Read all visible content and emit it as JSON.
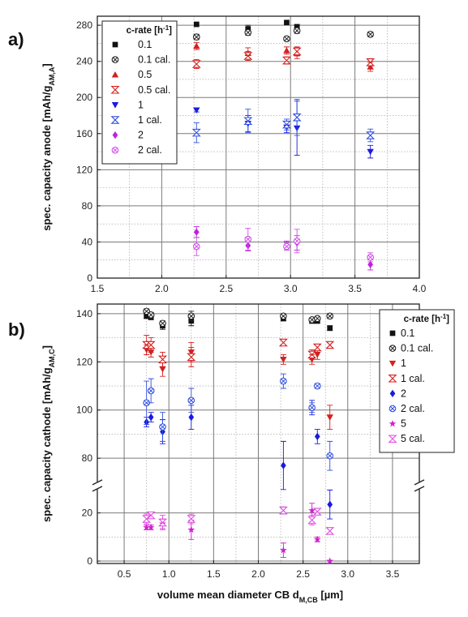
{
  "chart_data": [
    {
      "panel": "a)",
      "type": "scatter",
      "ylabel": "spec. capacity anode [mAh/g",
      "ylabel_sub": "AM,A",
      "ylabel_end": "]",
      "xlim": [
        1.5,
        4.0
      ],
      "ylim": [
        0,
        290
      ],
      "xticks": [
        "1.5",
        "2.0",
        "2.5",
        "3.0",
        "3.5",
        "4.0"
      ],
      "yticks": [
        "0",
        "40",
        "80",
        "120",
        "160",
        "200",
        "240",
        "280"
      ],
      "grid": true,
      "legend": {
        "title": "c-rate [h",
        "title_sup": "-1",
        "title_end": "]",
        "placement": "top-left"
      },
      "series": [
        {
          "name": "0.1",
          "marker": "square",
          "color": "#111111",
          "filled": true,
          "points": [
            [
              2.27,
              281,
              0
            ],
            [
              2.67,
              276,
              4
            ],
            [
              2.97,
              283,
              0
            ],
            [
              3.05,
              278,
              3
            ],
            [
              3.62,
              270,
              2
            ]
          ]
        },
        {
          "name": "0.1 cal.",
          "marker": "circle-x",
          "color": "#222222",
          "filled": false,
          "points": [
            [
              2.27,
              267,
              3
            ],
            [
              2.67,
              272,
              3
            ],
            [
              2.97,
              265,
              2
            ],
            [
              3.05,
              274,
              3
            ],
            [
              3.62,
              270,
              2
            ]
          ]
        },
        {
          "name": "0.5",
          "marker": "triangle-up",
          "color": "#d42020",
          "filled": true,
          "points": [
            [
              2.27,
              257,
              4
            ],
            [
              2.67,
              249,
              6
            ],
            [
              2.97,
              252,
              4
            ],
            [
              3.05,
              249,
              6
            ],
            [
              3.62,
              234,
              5
            ]
          ]
        },
        {
          "name": "0.5 cal.",
          "marker": "hourglass",
          "color": "#d42020",
          "filled": false,
          "points": [
            [
              2.27,
              237,
              5
            ],
            [
              2.67,
              246,
              5
            ],
            [
              2.97,
              241,
              4
            ],
            [
              3.05,
              251,
              5
            ],
            [
              3.62,
              239,
              4
            ]
          ]
        },
        {
          "name": "1",
          "marker": "triangle-down",
          "color": "#1a1ae0",
          "filled": true,
          "points": [
            [
              2.27,
              186,
              2
            ],
            [
              2.67,
              171,
              9
            ],
            [
              2.97,
              167,
              6
            ],
            [
              3.05,
              166,
              30
            ],
            [
              3.62,
              140,
              7
            ]
          ]
        },
        {
          "name": "1 cal.",
          "marker": "hourglass",
          "color": "#3050e0",
          "filled": false,
          "points": [
            [
              2.27,
              161,
              11
            ],
            [
              2.67,
              174,
              13
            ],
            [
              2.97,
              170,
              6
            ],
            [
              3.05,
              178,
              20
            ],
            [
              3.62,
              158,
              7
            ]
          ]
        },
        {
          "name": "2",
          "marker": "diamond",
          "color": "#c020e0",
          "filled": true,
          "points": [
            [
              2.27,
              51,
              6
            ],
            [
              2.67,
              36,
              6
            ],
            [
              2.97,
              36,
              5
            ],
            [
              3.05,
              39,
              8
            ],
            [
              3.62,
              15,
              6
            ]
          ]
        },
        {
          "name": "2 cal.",
          "marker": "circle-x",
          "color": "#d050e8",
          "filled": false,
          "points": [
            [
              2.27,
              35,
              10
            ],
            [
              2.67,
              43,
              12
            ],
            [
              2.97,
              35,
              4
            ],
            [
              3.05,
              41,
              13
            ],
            [
              3.62,
              23,
              5
            ]
          ]
        }
      ]
    },
    {
      "panel": "b)",
      "type": "scatter",
      "ylabel": "spec. capacity cathode  [mAh/g",
      "ylabel_sub": "AM,C",
      "ylabel_end": "]",
      "xlabel": "volume mean diameter CB d",
      "xlabel_sub": "M,CB",
      "xlabel_end": " [µm]",
      "xlim": [
        0.2,
        3.8
      ],
      "ylim": [
        -1,
        144
      ],
      "axis_break": [
        30,
        70
      ],
      "xticks": [
        "0.5",
        "1.0",
        "1.5",
        "2.0",
        "2.5",
        "3.0",
        "3.5"
      ],
      "yticks": [
        "0",
        "20",
        "80",
        "100",
        "120",
        "140"
      ],
      "grid": true,
      "legend": {
        "title": "c-rate [h",
        "title_sup": "-1",
        "title_end": "]",
        "placement": "top-right"
      },
      "series": [
        {
          "name": "0.1",
          "marker": "square",
          "color": "#111111",
          "filled": true,
          "points": [
            [
              0.75,
              139,
              1
            ],
            [
              0.8,
              138.5,
              1
            ],
            [
              0.93,
              135,
              1.5
            ],
            [
              1.25,
              137,
              2
            ],
            [
              2.28,
              138,
              1
            ],
            [
              2.6,
              137,
              1
            ],
            [
              2.66,
              137,
              1
            ],
            [
              2.8,
              134,
              1
            ]
          ]
        },
        {
          "name": "0.1 cal.",
          "marker": "circle-x",
          "color": "#222222",
          "filled": false,
          "points": [
            [
              0.75,
              141,
              1
            ],
            [
              0.8,
              139.5,
              1
            ],
            [
              0.93,
              136,
              1
            ],
            [
              1.25,
              139,
              2
            ],
            [
              2.28,
              139,
              0.5
            ],
            [
              2.6,
              137.5,
              0.5
            ],
            [
              2.66,
              138,
              0.5
            ],
            [
              2.8,
              139,
              1
            ]
          ]
        },
        {
          "name": "1",
          "marker": "triangle-down",
          "color": "#d42020",
          "filled": true,
          "points": [
            [
              0.75,
              125,
              2
            ],
            [
              0.8,
              124,
              2
            ],
            [
              0.93,
              117,
              3
            ],
            [
              1.25,
              124,
              4
            ],
            [
              2.28,
              121,
              2
            ],
            [
              2.6,
              121,
              2
            ],
            [
              2.66,
              123,
              2
            ],
            [
              2.8,
              97,
              5
            ]
          ]
        },
        {
          "name": "1 cal.",
          "marker": "hourglass",
          "color": "#d42020",
          "filled": false,
          "points": [
            [
              0.75,
              127,
              4
            ],
            [
              0.8,
              127,
              3
            ],
            [
              0.93,
              121,
              3
            ],
            [
              1.25,
              122,
              4
            ],
            [
              2.28,
              128,
              1
            ],
            [
              2.6,
              123,
              2
            ],
            [
              2.66,
              126,
              1
            ],
            [
              2.8,
              127,
              1
            ]
          ]
        },
        {
          "name": "2",
          "marker": "diamond",
          "color": "#1a1ae0",
          "filled": true,
          "points": [
            [
              0.75,
              95,
              2
            ],
            [
              0.8,
              97,
              2
            ],
            [
              0.93,
              91,
              5
            ],
            [
              1.25,
              97,
              5
            ],
            [
              2.28,
              77,
              10
            ],
            [
              2.6,
              101,
              3
            ],
            [
              2.66,
              89,
              3
            ],
            [
              2.8,
              23.5,
              6
            ]
          ]
        },
        {
          "name": "2 cal.",
          "marker": "circle-x",
          "color": "#3050e0",
          "filled": false,
          "points": [
            [
              0.75,
              103,
              9
            ],
            [
              0.8,
              108,
              5
            ],
            [
              0.93,
              93,
              6
            ],
            [
              1.25,
              104,
              5
            ],
            [
              2.28,
              112,
              3
            ],
            [
              2.6,
              101,
              2
            ],
            [
              2.66,
              110,
              1
            ],
            [
              2.8,
              81,
              6
            ]
          ]
        },
        {
          "name": "5",
          "marker": "star",
          "color": "#d020d0",
          "filled": true,
          "points": [
            [
              0.75,
              14,
              1
            ],
            [
              0.8,
              14,
              1
            ],
            [
              0.93,
              15.5,
              2
            ],
            [
              1.25,
              13,
              4
            ],
            [
              2.28,
              4.5,
              3
            ],
            [
              2.6,
              21,
              3
            ],
            [
              2.66,
              9,
              1
            ],
            [
              2.8,
              0,
              0
            ]
          ]
        },
        {
          "name": "5 cal.",
          "marker": "hourglass",
          "color": "#e050e0",
          "filled": false,
          "points": [
            [
              0.75,
              17.5,
              2
            ],
            [
              0.8,
              19,
              1
            ],
            [
              0.93,
              16,
              3
            ],
            [
              1.25,
              17.5,
              2
            ],
            [
              2.28,
              21,
              1.5
            ],
            [
              2.6,
              17,
              2
            ],
            [
              2.66,
              20.5,
              1
            ],
            [
              2.8,
              12.5,
              1
            ]
          ]
        }
      ]
    }
  ]
}
